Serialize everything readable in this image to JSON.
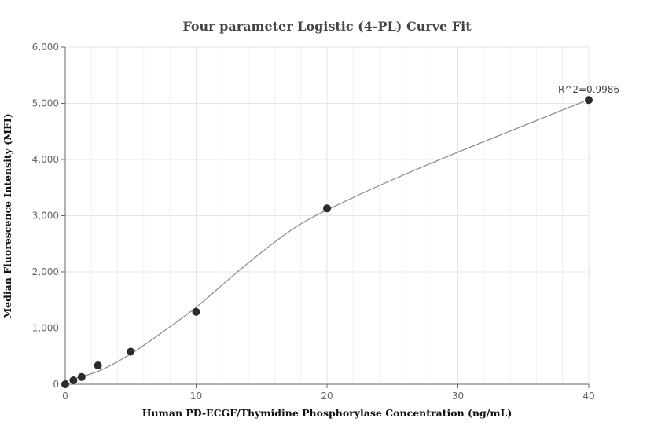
{
  "chart_data": {
    "type": "scatter",
    "title": "Four parameter Logistic (4-PL) Curve Fit",
    "xlabel": "Human PD-ECGF/Thymidine Phosphorylase Concentration (ng/mL)",
    "ylabel": "Median Fluorescence Intensity (MFI)",
    "xlim": [
      0,
      40
    ],
    "ylim": [
      0,
      6000
    ],
    "xticks": [
      0,
      10,
      20,
      30,
      40
    ],
    "xtick_labels": [
      "0",
      "10",
      "20",
      "30",
      "40"
    ],
    "yticks": [
      0,
      1000,
      2000,
      3000,
      4000,
      5000,
      6000
    ],
    "ytick_labels": [
      "0",
      "1,000",
      "2,000",
      "3,000",
      "4,000",
      "5,000",
      "6,000"
    ],
    "grid": true,
    "points": {
      "x": [
        0,
        0.625,
        1.25,
        2.5,
        5,
        10,
        20,
        40
      ],
      "y": [
        0,
        70,
        130,
        335,
        580,
        1290,
        3130,
        5060
      ]
    },
    "fit_curve": {
      "x": [
        0,
        2.5,
        5,
        7.5,
        10,
        12.5,
        15,
        17.5,
        20,
        25,
        30,
        35,
        40
      ],
      "y": [
        60,
        230,
        540,
        940,
        1370,
        1870,
        2350,
        2780,
        3100,
        3640,
        4130,
        4600,
        5070
      ]
    },
    "annotation": "R^2=0.9986",
    "colors": {
      "points": "#2b2b2b",
      "curve": "#888888",
      "grid": "#e6e6e6"
    }
  }
}
